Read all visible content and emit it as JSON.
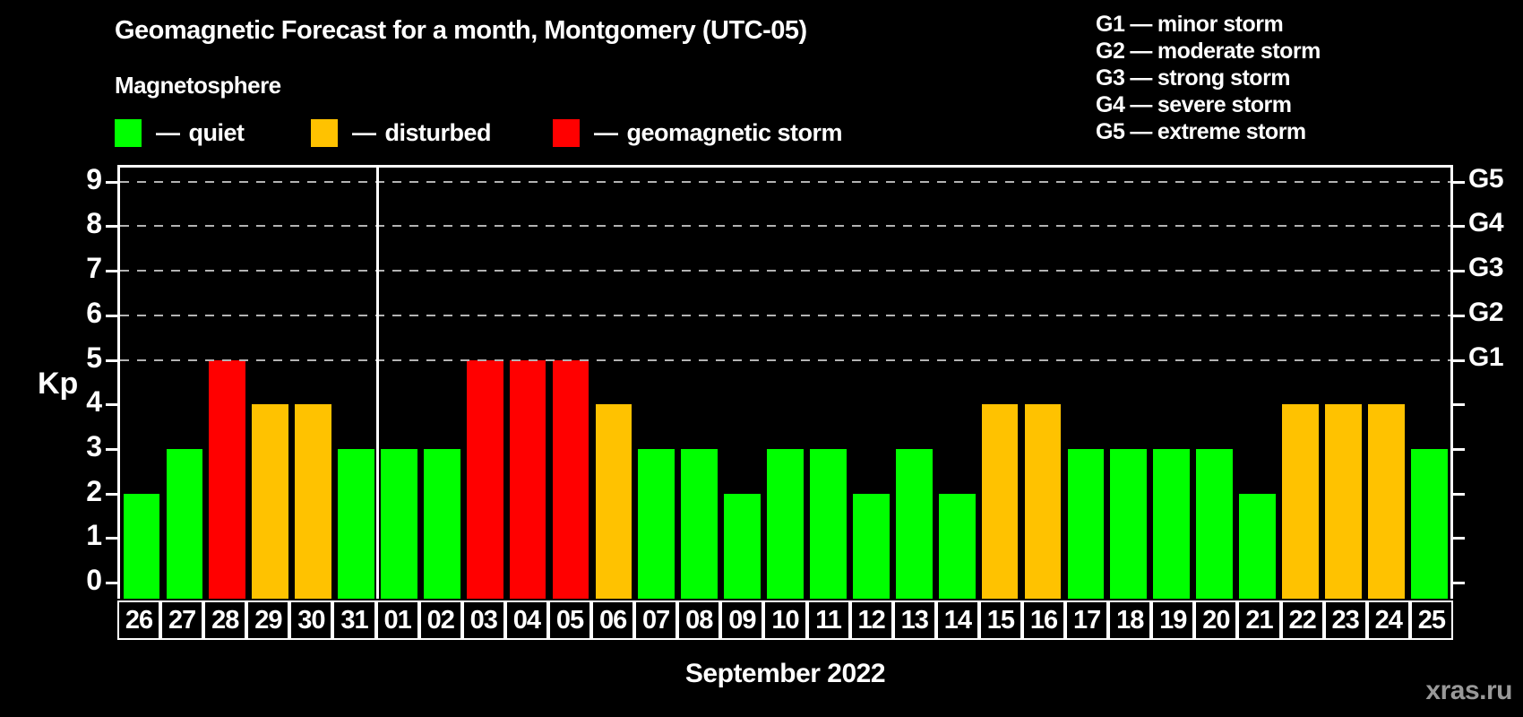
{
  "header": {
    "title": "Geomagnetic Forecast for a month, Montgomery (UTC-05)",
    "subtitle": "Magnetosphere"
  },
  "legend": {
    "separator": "—",
    "items": [
      {
        "label": "quiet",
        "color": "#00ff00"
      },
      {
        "label": "disturbed",
        "color": "#ffc200"
      },
      {
        "label": "geomagnetic storm",
        "color": "#ff0000"
      }
    ]
  },
  "storm_scale": {
    "separator": "—",
    "items": [
      {
        "code": "G1",
        "label": "minor storm"
      },
      {
        "code": "G2",
        "label": "moderate storm"
      },
      {
        "code": "G3",
        "label": "strong storm"
      },
      {
        "code": "G4",
        "label": "severe storm"
      },
      {
        "code": "G5",
        "label": "extreme storm"
      }
    ]
  },
  "chart_data": {
    "type": "bar",
    "title": "Geomagnetic Forecast for a month, Montgomery (UTC-05)",
    "subtitle": "Magnetosphere",
    "ylabel": "Kp",
    "xlabel": "September 2022",
    "ylim": [
      0,
      9
    ],
    "yticks": [
      0,
      1,
      2,
      3,
      4,
      5,
      6,
      7,
      8,
      9
    ],
    "grid": "dashed horizontal at Kp 5-9",
    "gridlines_at": [
      5,
      6,
      7,
      8,
      9
    ],
    "legend_position": "top-left",
    "categories": [
      "26",
      "27",
      "28",
      "29",
      "30",
      "31",
      "01",
      "02",
      "03",
      "04",
      "05",
      "06",
      "07",
      "08",
      "09",
      "10",
      "11",
      "12",
      "13",
      "14",
      "15",
      "16",
      "17",
      "18",
      "19",
      "20",
      "21",
      "22",
      "23",
      "24",
      "25"
    ],
    "values": [
      2,
      3,
      5,
      4,
      4,
      3,
      3,
      3,
      5,
      5,
      5,
      4,
      3,
      3,
      2,
      3,
      3,
      2,
      3,
      2,
      4,
      4,
      3,
      3,
      3,
      3,
      2,
      4,
      4,
      4,
      3
    ],
    "month_divider_after_index": 5,
    "status_rule": {
      "quiet_max_kp": 3,
      "disturbed_kp": 4,
      "storm_min_kp": 5
    },
    "colors": {
      "quiet": "#00ff00",
      "disturbed": "#ffc200",
      "storm": "#ff0000"
    },
    "right_axis_labels": [
      {
        "kp": 5,
        "label": "G1"
      },
      {
        "kp": 6,
        "label": "G2"
      },
      {
        "kp": 7,
        "label": "G3"
      },
      {
        "kp": 8,
        "label": "G4"
      },
      {
        "kp": 9,
        "label": "G5"
      }
    ]
  },
  "footer": {
    "month_label": "September 2022",
    "watermark": "xras.ru"
  },
  "theme": {
    "background": "#000000",
    "axis_color": "#ffffff",
    "grid_color": "#b3b3b3",
    "watermark_color": "#999999"
  }
}
